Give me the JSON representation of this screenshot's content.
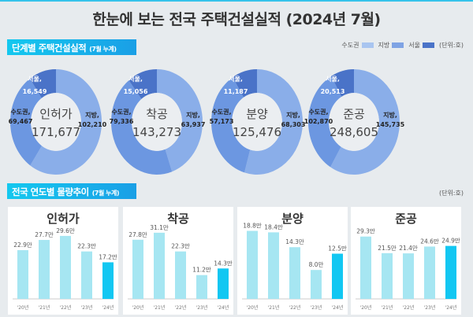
{
  "title": "한눈에 보는 전국 주택건설실적 (2024년 7월)",
  "section1": {
    "label": "단계별 주택건설실적",
    "sub": "(7월 누계)"
  },
  "section2": {
    "label": "전국 연도별 물량추이",
    "sub": "(7월 누계)"
  },
  "legend": [
    {
      "label": "수도권",
      "color": "#a9c5f0"
    },
    {
      "label": "지방",
      "color": "#7fa3e4"
    },
    {
      "label": "서울",
      "color": "#4a73c8"
    }
  ],
  "unit": "(단위:호)",
  "colors": {
    "jibang": "#8aaee9",
    "sudo": "#6c97e1",
    "seoul": "#4a73c8",
    "bar": "#a6e6f2",
    "bar_current": "#12c7f2"
  },
  "donuts": [
    {
      "name": "인허가",
      "total": "171,677",
      "jibang": 102210,
      "sudo": 69467,
      "seoul": 16549,
      "jibang_label": "지방,",
      "jibang_value": "102,210",
      "sudo_label": "수도권,",
      "sudo_value": "69,467",
      "seoul_label": "서울,",
      "seoul_value": "16,549"
    },
    {
      "name": "착공",
      "total": "143,273",
      "jibang": 63937,
      "sudo": 79336,
      "seoul": 15056,
      "jibang_label": "지방,",
      "jibang_value": "63,937",
      "sudo_label": "수도권,",
      "sudo_value": "79,336",
      "seoul_label": "서울,",
      "seoul_value": "15,056"
    },
    {
      "name": "분양",
      "total": "125,476",
      "jibang": 68303,
      "sudo": 57173,
      "seoul": 11187,
      "jibang_label": "지방,",
      "jibang_value": "68,303",
      "sudo_label": "수도권,",
      "sudo_value": "57,173",
      "seoul_label": "서울,",
      "seoul_value": "11,187"
    },
    {
      "name": "준공",
      "total": "248,605",
      "jibang": 145735,
      "sudo": 102870,
      "seoul": 20513,
      "jibang_label": "지방,",
      "jibang_value": "145,735",
      "sudo_label": "수도권,",
      "sudo_value": "102,870",
      "seoul_label": "서울,",
      "seoul_value": "20,513"
    }
  ],
  "chart_data": [
    {
      "type": "bar",
      "title": "인허가",
      "categories": [
        "'20년",
        "'21년",
        "'22년",
        "'23년",
        "'24년"
      ],
      "values": [
        22.9,
        27.7,
        29.6,
        22.3,
        17.2
      ],
      "labels": [
        "22.9만",
        "27.7만",
        "29.6만",
        "22.3만",
        "17.2만"
      ],
      "ylim": [
        0,
        34
      ]
    },
    {
      "type": "bar",
      "title": "착공",
      "categories": [
        "'20년",
        "'21년",
        "'22년",
        "'23년",
        "'24년"
      ],
      "values": [
        27.8,
        31.1,
        22.3,
        11.2,
        14.3
      ],
      "labels": [
        "27.8만",
        "31.1만",
        "22.3만",
        "11.2만",
        "14.3만"
      ],
      "ylim": [
        0,
        34
      ]
    },
    {
      "type": "bar",
      "title": "분양",
      "categories": [
        "'20년",
        "'21년",
        "'22년",
        "'23년",
        "'24년"
      ],
      "values": [
        18.8,
        18.4,
        14.3,
        8.0,
        12.5
      ],
      "labels": [
        "18.8만",
        "18.4만",
        "14.3만",
        "8.0만",
        "12.5만"
      ],
      "ylim": [
        0,
        20
      ]
    },
    {
      "type": "bar",
      "title": "준공",
      "categories": [
        "'20년",
        "'21년",
        "'22년",
        "'23년",
        "'24년"
      ],
      "values": [
        29.3,
        21.5,
        21.4,
        24.6,
        24.9
      ],
      "labels": [
        "29.3만",
        "21.5만",
        "21.4만",
        "24.6만",
        "24.9만"
      ],
      "ylim": [
        0,
        34
      ]
    }
  ]
}
